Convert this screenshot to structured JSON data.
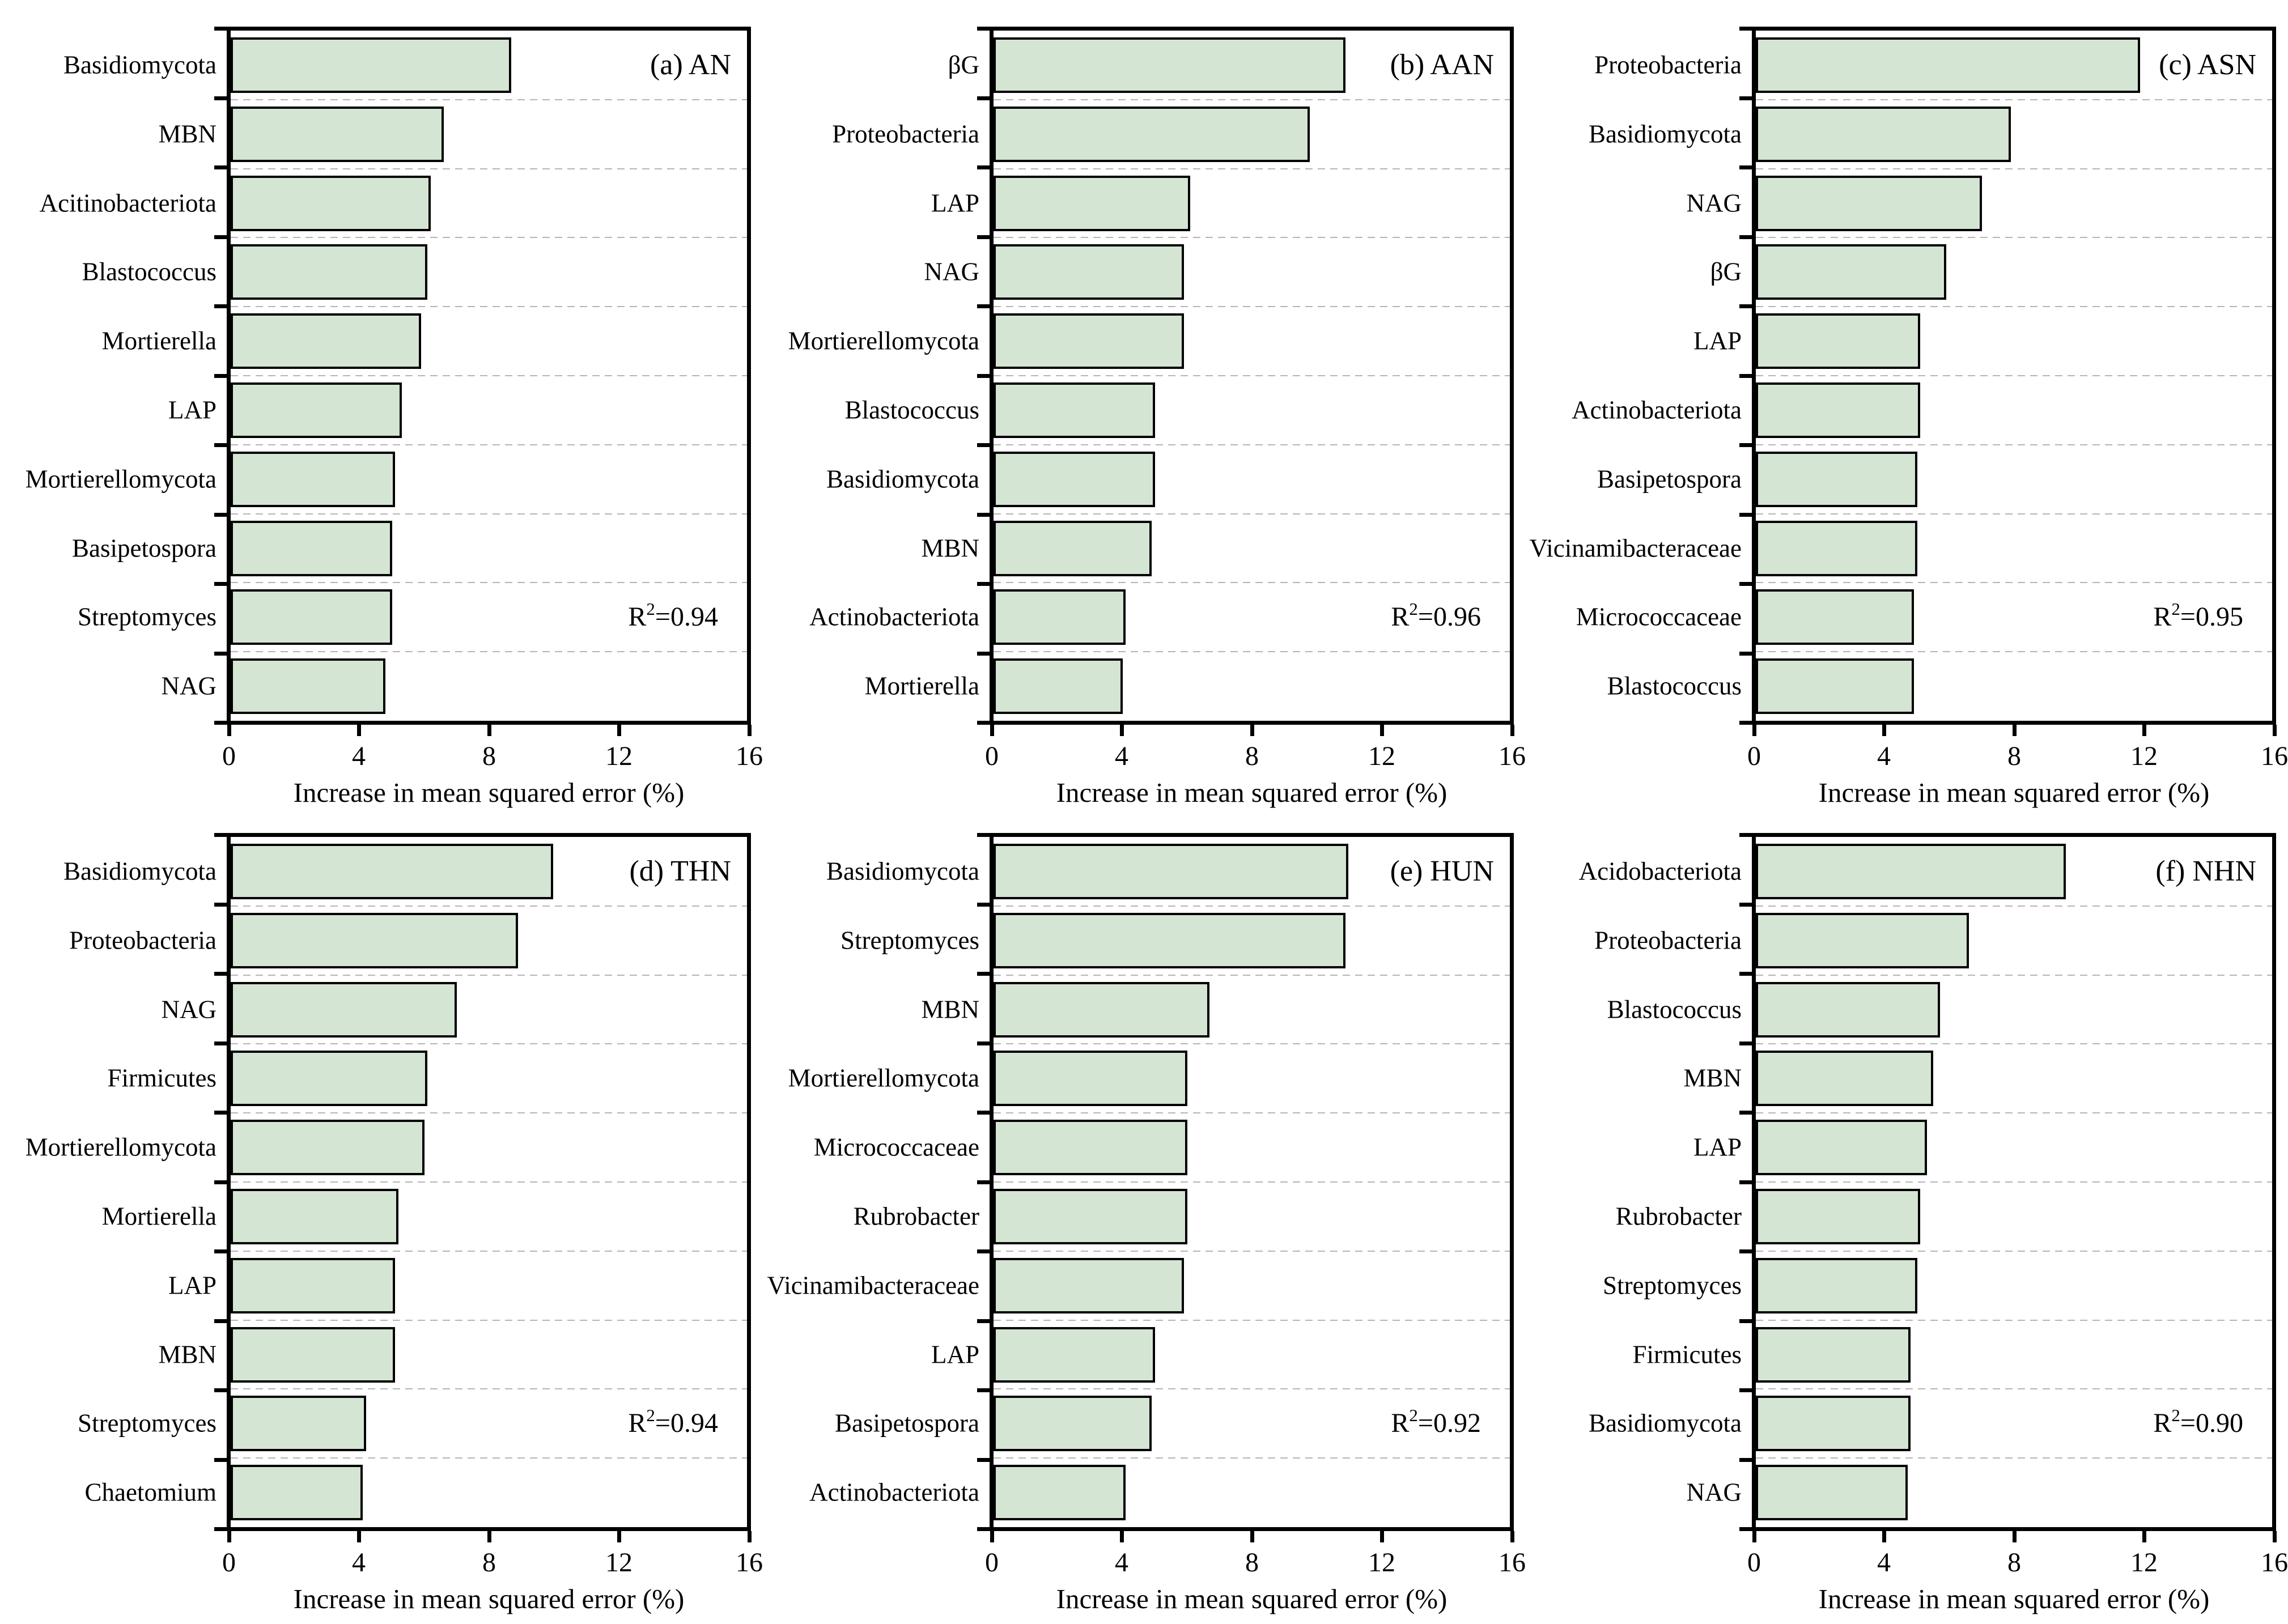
{
  "style": {
    "background": "#ffffff",
    "bar_fill": "#d4e5d3",
    "bar_border": "#000000",
    "grid_color": "#b5b5b5",
    "axis_color": "#000000",
    "text_color": "#000000"
  },
  "axis": {
    "xlabel": "Increase in mean squared error (%)",
    "xlim": [
      0,
      16
    ],
    "xticks": [
      "0",
      "4",
      "8",
      "12",
      "16"
    ],
    "grid": "horizontal-dashed",
    "legend": "none"
  },
  "chart_data": [
    {
      "panel": "a",
      "type": "bar",
      "orientation": "horizontal",
      "tag": "(a) AN",
      "r2": {
        "base": "R",
        "sup": "2",
        "eq": "=0.94"
      },
      "categories": [
        "Basidiomycota",
        "MBN",
        "Acitinobacteriota",
        "Blastococcus",
        "Mortierella",
        "LAP",
        "Mortierellomycota",
        "Basipetospora",
        "Streptomyces",
        "NAG"
      ],
      "values": [
        8.7,
        6.6,
        6.2,
        6.1,
        5.9,
        5.3,
        5.1,
        5.0,
        5.0,
        4.8
      ],
      "xlabel": "Increase in mean squared error (%)",
      "xlim": [
        0,
        16
      ],
      "xticks": [
        "0",
        "4",
        "8",
        "12",
        "16"
      ]
    },
    {
      "panel": "b",
      "type": "bar",
      "orientation": "horizontal",
      "tag": "(b) AAN",
      "r2": {
        "base": "R",
        "sup": "2",
        "eq": "=0.96"
      },
      "categories": [
        "βG",
        "Proteobacteria",
        "LAP",
        "NAG",
        "Mortierellomycota",
        "Blastococcus",
        "Basidiomycota",
        "MBN",
        "Actinobacteriota",
        "Mortierella"
      ],
      "values": [
        10.9,
        9.8,
        6.1,
        5.9,
        5.9,
        5.0,
        5.0,
        4.9,
        4.1,
        4.0
      ],
      "xlabel": "Increase in mean squared error (%)",
      "xlim": [
        0,
        16
      ],
      "xticks": [
        "0",
        "4",
        "8",
        "12",
        "16"
      ]
    },
    {
      "panel": "c",
      "type": "bar",
      "orientation": "horizontal",
      "tag": "(c) ASN",
      "r2": {
        "base": "R",
        "sup": "2",
        "eq": "=0.95"
      },
      "categories": [
        "Proteobacteria",
        "Basidiomycota",
        "NAG",
        "βG",
        "LAP",
        "Actinobacteriota",
        "Basipetospora",
        "Vicinamibacteraceae",
        "Micrococcaceae",
        "Blastococcus"
      ],
      "values": [
        11.9,
        7.9,
        7.0,
        5.9,
        5.1,
        5.1,
        5.0,
        5.0,
        4.9,
        4.9
      ],
      "xlabel": "Increase in mean squared error (%)",
      "xlim": [
        0,
        16
      ],
      "xticks": [
        "0",
        "4",
        "8",
        "12",
        "16"
      ]
    },
    {
      "panel": "d",
      "type": "bar",
      "orientation": "horizontal",
      "tag": "(d) THN",
      "r2": {
        "base": "R",
        "sup": "2",
        "eq": "=0.94"
      },
      "categories": [
        "Basidiomycota",
        "Proteobacteria",
        "NAG",
        "Firmicutes",
        "Mortierellomycota",
        "Mortierella",
        "LAP",
        "MBN",
        "Streptomyces",
        "Chaetomium"
      ],
      "values": [
        10.0,
        8.9,
        7.0,
        6.1,
        6.0,
        5.2,
        5.1,
        5.1,
        4.2,
        4.1
      ],
      "xlabel": "Increase in mean squared error (%)",
      "xlim": [
        0,
        16
      ],
      "xticks": [
        "0",
        "4",
        "8",
        "12",
        "16"
      ]
    },
    {
      "panel": "e",
      "type": "bar",
      "orientation": "horizontal",
      "tag": "(e) HUN",
      "r2": {
        "base": "R",
        "sup": "2",
        "eq": "=0.92"
      },
      "categories": [
        "Basidiomycota",
        "Streptomyces",
        "MBN",
        "Mortierellomycota",
        "Micrococcaceae",
        "Rubrobacter",
        "Vicinamibacteraceae",
        "LAP",
        "Basipetospora",
        "Actinobacteriota"
      ],
      "values": [
        11.0,
        10.9,
        6.7,
        6.0,
        6.0,
        6.0,
        5.9,
        5.0,
        4.9,
        4.1
      ],
      "xlabel": "Increase in mean squared error (%)",
      "xlim": [
        0,
        16
      ],
      "xticks": [
        "0",
        "4",
        "8",
        "12",
        "16"
      ]
    },
    {
      "panel": "f",
      "type": "bar",
      "orientation": "horizontal",
      "tag": "(f) NHN",
      "r2": {
        "base": "R",
        "sup": "2",
        "eq": "=0.90"
      },
      "categories": [
        "Acidobacteriota",
        "Proteobacteria",
        "Blastococcus",
        "MBN",
        "LAP",
        "Rubrobacter",
        "Streptomyces",
        "Firmicutes",
        "Basidiomycota",
        "NAG"
      ],
      "values": [
        9.6,
        6.6,
        5.7,
        5.5,
        5.3,
        5.1,
        5.0,
        4.8,
        4.8,
        4.7
      ],
      "xlabel": "Increase in mean squared error (%)",
      "xlim": [
        0,
        16
      ],
      "xticks": [
        "0",
        "4",
        "8",
        "12",
        "16"
      ]
    }
  ]
}
